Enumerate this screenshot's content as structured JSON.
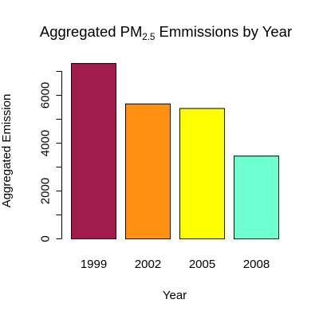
{
  "chart_data": {
    "type": "bar",
    "title": {
      "prefix": "Aggregated PM",
      "subscript": "2.5",
      "suffix": " Emmissions by Year"
    },
    "xlabel": "Year",
    "ylabel": "Aggregated Emission",
    "categories": [
      "1999",
      "2002",
      "2005",
      "2008"
    ],
    "values": [
      7330,
      5640,
      5450,
      3460
    ],
    "colors": [
      "#A01C4C",
      "#FF9010",
      "#FFFF00",
      "#6EFFD0"
    ],
    "ylim": [
      0,
      7000
    ],
    "yticks": [
      0,
      1000,
      2000,
      3000,
      4000,
      5000,
      6000,
      7000
    ],
    "ytick_labels": [
      "0",
      "",
      "2000",
      "",
      "4000",
      "",
      "6000",
      ""
    ]
  }
}
